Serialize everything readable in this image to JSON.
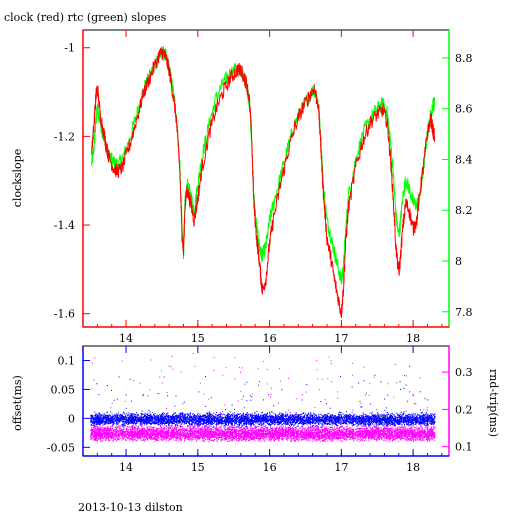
{
  "figure": {
    "title": "clock (red) rtc (green) slopes",
    "footer": "2013-10-13 dilston"
  },
  "chart_data": [
    {
      "type": "line",
      "title": "clock (red) rtc (green) slopes",
      "xlabel": "",
      "ylabel": "clockslope",
      "y2label": "",
      "xlim": [
        13.4,
        18.5
      ],
      "ylim": [
        -1.63,
        -0.96
      ],
      "y2lim": [
        7.74,
        8.91
      ],
      "xticks": [
        14,
        15,
        16,
        17,
        18
      ],
      "yticks": [
        -1,
        -1.2,
        -1.4,
        -1.6
      ],
      "y2ticks": [
        7.8,
        8,
        8.2,
        8.4,
        8.6,
        8.8
      ],
      "colors": {
        "axes_left": "#ff0000",
        "axes_right": "#00ff00",
        "axes_bottom": "#ff0000"
      },
      "series": [
        {
          "color": "#ff0000",
          "axis": "left",
          "points": [
            [
              13.52,
              -1.23
            ],
            [
              13.55,
              -1.18
            ],
            [
              13.58,
              -1.11
            ],
            [
              13.6,
              -1.09
            ],
            [
              13.64,
              -1.15
            ],
            [
              13.7,
              -1.2
            ],
            [
              13.75,
              -1.24
            ],
            [
              13.82,
              -1.27
            ],
            [
              13.88,
              -1.28
            ],
            [
              13.95,
              -1.27
            ],
            [
              14.05,
              -1.22
            ],
            [
              14.15,
              -1.16
            ],
            [
              14.25,
              -1.1
            ],
            [
              14.35,
              -1.06
            ],
            [
              14.45,
              -1.02
            ],
            [
              14.5,
              -1.01
            ],
            [
              14.55,
              -1.02
            ],
            [
              14.6,
              -1.05
            ],
            [
              14.65,
              -1.1
            ],
            [
              14.7,
              -1.16
            ],
            [
              14.75,
              -1.28
            ],
            [
              14.78,
              -1.42
            ],
            [
              14.8,
              -1.46
            ],
            [
              14.82,
              -1.36
            ],
            [
              14.85,
              -1.32
            ],
            [
              14.9,
              -1.35
            ],
            [
              14.95,
              -1.39
            ],
            [
              15.0,
              -1.34
            ],
            [
              15.05,
              -1.28
            ],
            [
              15.15,
              -1.2
            ],
            [
              15.25,
              -1.14
            ],
            [
              15.35,
              -1.1
            ],
            [
              15.45,
              -1.07
            ],
            [
              15.55,
              -1.05
            ],
            [
              15.6,
              -1.05
            ],
            [
              15.68,
              -1.08
            ],
            [
              15.72,
              -1.12
            ],
            [
              15.75,
              -1.2
            ],
            [
              15.78,
              -1.35
            ],
            [
              15.82,
              -1.43
            ],
            [
              15.85,
              -1.47
            ],
            [
              15.88,
              -1.52
            ],
            [
              15.9,
              -1.55
            ],
            [
              15.95,
              -1.52
            ],
            [
              16.0,
              -1.44
            ],
            [
              16.05,
              -1.39
            ],
            [
              16.15,
              -1.31
            ],
            [
              16.25,
              -1.24
            ],
            [
              16.35,
              -1.18
            ],
            [
              16.45,
              -1.14
            ],
            [
              16.55,
              -1.11
            ],
            [
              16.62,
              -1.09
            ],
            [
              16.68,
              -1.13
            ],
            [
              16.72,
              -1.24
            ],
            [
              16.75,
              -1.33
            ],
            [
              16.8,
              -1.43
            ],
            [
              16.85,
              -1.47
            ],
            [
              16.9,
              -1.52
            ],
            [
              16.95,
              -1.56
            ],
            [
              17.0,
              -1.6
            ],
            [
              17.03,
              -1.54
            ],
            [
              17.06,
              -1.44
            ],
            [
              17.1,
              -1.36
            ],
            [
              17.2,
              -1.27
            ],
            [
              17.3,
              -1.21
            ],
            [
              17.4,
              -1.17
            ],
            [
              17.5,
              -1.15
            ],
            [
              17.58,
              -1.14
            ],
            [
              17.64,
              -1.17
            ],
            [
              17.68,
              -1.24
            ],
            [
              17.72,
              -1.33
            ],
            [
              17.76,
              -1.45
            ],
            [
              17.8,
              -1.51
            ],
            [
              17.82,
              -1.48
            ],
            [
              17.86,
              -1.4
            ],
            [
              17.9,
              -1.35
            ],
            [
              17.95,
              -1.37
            ],
            [
              18.0,
              -1.41
            ],
            [
              18.05,
              -1.39
            ],
            [
              18.1,
              -1.32
            ],
            [
              18.15,
              -1.26
            ],
            [
              18.2,
              -1.19
            ],
            [
              18.25,
              -1.16
            ],
            [
              18.28,
              -1.19
            ],
            [
              18.3,
              -1.2
            ]
          ]
        },
        {
          "color": "#00ff00",
          "axis": "right",
          "points": [
            [
              13.52,
              8.38
            ],
            [
              13.55,
              8.44
            ],
            [
              13.58,
              8.55
            ],
            [
              13.6,
              8.6
            ],
            [
              13.64,
              8.55
            ],
            [
              13.7,
              8.47
            ],
            [
              13.75,
              8.42
            ],
            [
              13.82,
              8.39
            ],
            [
              13.88,
              8.38
            ],
            [
              13.95,
              8.4
            ],
            [
              14.05,
              8.48
            ],
            [
              14.15,
              8.58
            ],
            [
              14.25,
              8.68
            ],
            [
              14.35,
              8.74
            ],
            [
              14.45,
              8.8
            ],
            [
              14.5,
              8.82
            ],
            [
              14.55,
              8.81
            ],
            [
              14.6,
              8.76
            ],
            [
              14.65,
              8.68
            ],
            [
              14.7,
              8.58
            ],
            [
              14.75,
              8.38
            ],
            [
              14.78,
              8.12
            ],
            [
              14.8,
              8.02
            ],
            [
              14.82,
              8.22
            ],
            [
              14.85,
              8.3
            ],
            [
              14.9,
              8.26
            ],
            [
              14.95,
              8.2
            ],
            [
              15.0,
              8.3
            ],
            [
              15.05,
              8.4
            ],
            [
              15.15,
              8.53
            ],
            [
              15.25,
              8.64
            ],
            [
              15.35,
              8.7
            ],
            [
              15.45,
              8.74
            ],
            [
              15.55,
              8.76
            ],
            [
              15.6,
              8.75
            ],
            [
              15.68,
              8.7
            ],
            [
              15.72,
              8.62
            ],
            [
              15.75,
              8.47
            ],
            [
              15.78,
              8.25
            ],
            [
              15.82,
              8.13
            ],
            [
              15.85,
              8.07
            ],
            [
              15.88,
              8.03
            ],
            [
              15.9,
              8.02
            ],
            [
              15.95,
              8.06
            ],
            [
              16.0,
              8.16
            ],
            [
              16.05,
              8.22
            ],
            [
              16.15,
              8.33
            ],
            [
              16.25,
              8.44
            ],
            [
              16.35,
              8.54
            ],
            [
              16.45,
              8.6
            ],
            [
              16.55,
              8.65
            ],
            [
              16.62,
              8.68
            ],
            [
              16.68,
              8.62
            ],
            [
              16.72,
              8.45
            ],
            [
              16.75,
              8.3
            ],
            [
              16.8,
              8.16
            ],
            [
              16.85,
              8.1
            ],
            [
              16.9,
              8.04
            ],
            [
              16.95,
              7.98
            ],
            [
              17.0,
              7.92
            ],
            [
              17.03,
              7.98
            ],
            [
              17.06,
              8.12
            ],
            [
              17.1,
              8.26
            ],
            [
              17.2,
              8.4
            ],
            [
              17.3,
              8.5
            ],
            [
              17.4,
              8.56
            ],
            [
              17.5,
              8.6
            ],
            [
              17.58,
              8.62
            ],
            [
              17.64,
              8.58
            ],
            [
              17.68,
              8.48
            ],
            [
              17.72,
              8.36
            ],
            [
              17.76,
              8.18
            ],
            [
              17.8,
              8.1
            ],
            [
              17.82,
              8.14
            ],
            [
              17.86,
              8.26
            ],
            [
              17.9,
              8.32
            ],
            [
              17.95,
              8.28
            ],
            [
              18.0,
              8.23
            ],
            [
              18.05,
              8.22
            ],
            [
              18.1,
              8.26
            ],
            [
              18.15,
              8.38
            ],
            [
              18.2,
              8.5
            ],
            [
              18.25,
              8.58
            ],
            [
              18.28,
              8.62
            ],
            [
              18.3,
              8.62
            ]
          ]
        }
      ]
    },
    {
      "type": "scatter",
      "xlabel": "",
      "ylabel": "offset(ms)",
      "y2label": "rnd-trip(ms)",
      "xlim": [
        13.4,
        18.5
      ],
      "ylim": [
        -0.065,
        0.125
      ],
      "y2lim": [
        0.075,
        0.37
      ],
      "xticks": [
        14,
        15,
        16,
        17,
        18
      ],
      "yticks": [
        0.1,
        0.05,
        0,
        -0.05
      ],
      "y2ticks": [
        0.3,
        0.2,
        0.1
      ],
      "colors": {
        "axes_left": "#0000ff",
        "axes_right": "#ff00ff",
        "axes_bottom": "#0000ff"
      },
      "series": [
        {
          "color": "#0000ff",
          "axis": "left",
          "kind": "dense-band",
          "center": -0.002,
          "spread": 0.015,
          "outlier_max": 0.075,
          "outlier_min": -0.05
        },
        {
          "color": "#ff00ff",
          "axis": "right",
          "kind": "dense-band",
          "center": 0.135,
          "spread": 0.022,
          "outlier_max": 0.35,
          "outlier_min": 0.1
        }
      ]
    }
  ]
}
